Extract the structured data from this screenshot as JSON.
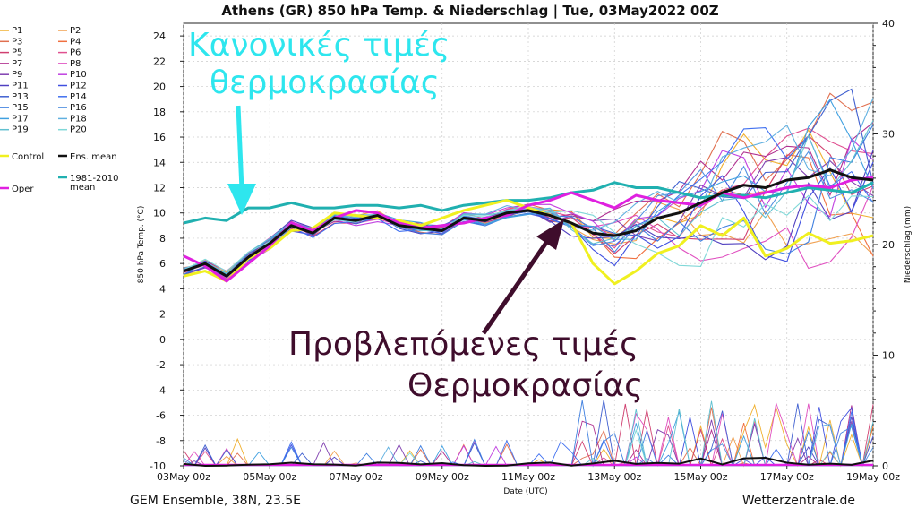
{
  "chart_data": {
    "type": "line",
    "title": "Athens  (GR)  850 hPa Temp. & Niederschlag | Tue, 03May2022 00Z",
    "xlabel": "Date (UTC)",
    "ylabel": "850 hPa Temp. (°C)",
    "y2label": "Niederschlag (mm)",
    "ylim": [
      -10,
      25
    ],
    "y2lim": [
      0,
      40
    ],
    "yticks": [
      -10,
      -8,
      -6,
      -4,
      -2,
      0,
      2,
      4,
      6,
      8,
      10,
      12,
      14,
      16,
      18,
      20,
      22,
      24
    ],
    "y2ticks": [
      0,
      10,
      20,
      30,
      40
    ],
    "xlim": [
      0,
      16
    ],
    "xticks": [
      {
        "x": 0,
        "label": "03May 00z"
      },
      {
        "x": 2,
        "label": "05May 00z"
      },
      {
        "x": 4,
        "label": "07May 00z"
      },
      {
        "x": 6,
        "label": "09May 00z"
      },
      {
        "x": 8,
        "label": "11May 00z"
      },
      {
        "x": 10,
        "label": "13May 00z"
      },
      {
        "x": 12,
        "label": "15May 00z"
      },
      {
        "x": 14,
        "label": "17May 00z"
      },
      {
        "x": 16,
        "label": "19May 00z"
      }
    ],
    "grid": true,
    "legend_position": "left",
    "members_count": 20,
    "member_colors": [
      "#f0b030",
      "#f0a050",
      "#e07050",
      "#f07040",
      "#d04070",
      "#e05090",
      "#b03090",
      "#e050c0",
      "#8040b0",
      "#c040e0",
      "#5040c0",
      "#4050e0",
      "#4060d0",
      "#4070f0",
      "#4080e0",
      "#5090e0",
      "#40a0e0",
      "#60b0e0",
      "#60c0d0",
      "#80d8d8"
    ],
    "legend": [
      {
        "label": "P1",
        "color": "#f0b030"
      },
      {
        "label": "P2",
        "color": "#f0a050"
      },
      {
        "label": "P3",
        "color": "#e07050"
      },
      {
        "label": "P4",
        "color": "#f07040"
      },
      {
        "label": "P5",
        "color": "#d04070"
      },
      {
        "label": "P6",
        "color": "#e05090"
      },
      {
        "label": "P7",
        "color": "#b03090"
      },
      {
        "label": "P8",
        "color": "#e050c0"
      },
      {
        "label": "P9",
        "color": "#8040b0"
      },
      {
        "label": "P10",
        "color": "#c040e0"
      },
      {
        "label": "P11",
        "color": "#5040c0"
      },
      {
        "label": "P12",
        "color": "#4050e0"
      },
      {
        "label": "P13",
        "color": "#4060d0"
      },
      {
        "label": "P14",
        "color": "#4070f0"
      },
      {
        "label": "P15",
        "color": "#4080e0"
      },
      {
        "label": "P16",
        "color": "#5090e0"
      },
      {
        "label": "P17",
        "color": "#40a0e0"
      },
      {
        "label": "P18",
        "color": "#60b0e0"
      },
      {
        "label": "P19",
        "color": "#60c0d0"
      },
      {
        "label": "P20",
        "color": "#80d8d8"
      },
      {
        "label": "Control",
        "color": "#f0f020"
      },
      {
        "label": "Ens. mean",
        "color": "#111111"
      },
      {
        "label": "1981-2010 mean",
        "color": "#20b0b0"
      },
      {
        "label": "Oper",
        "color": "#e020e0"
      }
    ],
    "series": [
      {
        "name": "Ens. mean",
        "color": "#111111",
        "width": 3,
        "values": [
          [
            0,
            5.4
          ],
          [
            0.5,
            6.0
          ],
          [
            1,
            5.0
          ],
          [
            1.5,
            6.5
          ],
          [
            2,
            7.6
          ],
          [
            2.5,
            9.0
          ],
          [
            3,
            8.4
          ],
          [
            3.5,
            9.6
          ],
          [
            4,
            9.4
          ],
          [
            4.5,
            9.8
          ],
          [
            5,
            9.0
          ],
          [
            5.5,
            8.8
          ],
          [
            6,
            8.6
          ],
          [
            6.5,
            9.6
          ],
          [
            7,
            9.4
          ],
          [
            7.5,
            10.0
          ],
          [
            8,
            10.2
          ],
          [
            8.5,
            9.8
          ],
          [
            9,
            9.2
          ],
          [
            9.5,
            8.4
          ],
          [
            10,
            8.2
          ],
          [
            10.5,
            8.6
          ],
          [
            11,
            9.6
          ],
          [
            11.5,
            10.0
          ],
          [
            12,
            10.8
          ],
          [
            12.5,
            11.6
          ],
          [
            13,
            12.2
          ],
          [
            13.5,
            12.0
          ],
          [
            14,
            12.6
          ],
          [
            14.5,
            12.8
          ],
          [
            15,
            13.4
          ],
          [
            15.5,
            12.8
          ],
          [
            16,
            12.6
          ]
        ]
      },
      {
        "name": "1981-2010 mean",
        "color": "#20b0b0",
        "width": 3,
        "values": [
          [
            0,
            9.2
          ],
          [
            0.5,
            9.6
          ],
          [
            1,
            9.4
          ],
          [
            1.5,
            10.4
          ],
          [
            2,
            10.4
          ],
          [
            2.5,
            10.8
          ],
          [
            3,
            10.4
          ],
          [
            3.5,
            10.4
          ],
          [
            4,
            10.6
          ],
          [
            4.5,
            10.6
          ],
          [
            5,
            10.4
          ],
          [
            5.5,
            10.6
          ],
          [
            6,
            10.2
          ],
          [
            6.5,
            10.6
          ],
          [
            7,
            10.8
          ],
          [
            7.5,
            11.0
          ],
          [
            8,
            11.0
          ],
          [
            8.5,
            11.2
          ],
          [
            9,
            11.6
          ],
          [
            9.5,
            11.8
          ],
          [
            10,
            12.4
          ],
          [
            10.5,
            12.0
          ],
          [
            11,
            12.0
          ],
          [
            11.5,
            11.6
          ],
          [
            12,
            11.2
          ],
          [
            12.5,
            11.4
          ],
          [
            13,
            11.4
          ],
          [
            13.5,
            11.2
          ],
          [
            14,
            11.6
          ],
          [
            14.5,
            12.0
          ],
          [
            15,
            11.8
          ],
          [
            15.5,
            11.6
          ],
          [
            16,
            12.4
          ]
        ]
      },
      {
        "name": "Control",
        "color": "#f0f020",
        "width": 3,
        "values": [
          [
            0,
            5.0
          ],
          [
            0.5,
            5.4
          ],
          [
            1,
            4.6
          ],
          [
            1.5,
            6.4
          ],
          [
            2,
            7.2
          ],
          [
            2.5,
            8.6
          ],
          [
            3,
            8.8
          ],
          [
            3.5,
            10.0
          ],
          [
            4,
            9.8
          ],
          [
            4.5,
            9.6
          ],
          [
            5,
            9.4
          ],
          [
            5.5,
            9.0
          ],
          [
            6,
            9.6
          ],
          [
            6.5,
            10.2
          ],
          [
            7,
            10.6
          ],
          [
            7.5,
            11.0
          ],
          [
            8,
            10.4
          ],
          [
            8.5,
            9.8
          ],
          [
            9,
            9.2
          ],
          [
            9.5,
            6.0
          ],
          [
            10,
            4.4
          ],
          [
            10.5,
            5.4
          ],
          [
            11,
            6.8
          ],
          [
            11.5,
            7.4
          ],
          [
            12,
            9.0
          ],
          [
            12.5,
            8.2
          ],
          [
            13,
            9.6
          ],
          [
            13.5,
            6.6
          ],
          [
            14,
            7.2
          ],
          [
            14.5,
            8.4
          ],
          [
            15,
            7.6
          ],
          [
            15.5,
            7.8
          ],
          [
            16,
            8.2
          ]
        ]
      },
      {
        "name": "Oper",
        "color": "#e020e0",
        "width": 3,
        "values": [
          [
            0,
            6.6
          ],
          [
            0.5,
            5.8
          ],
          [
            1,
            4.6
          ],
          [
            1.5,
            6.0
          ],
          [
            2,
            7.4
          ],
          [
            2.5,
            9.2
          ],
          [
            3,
            8.6
          ],
          [
            3.5,
            9.6
          ],
          [
            4,
            10.2
          ],
          [
            4.5,
            10.0
          ],
          [
            5,
            9.2
          ],
          [
            5.5,
            8.8
          ],
          [
            6,
            9.0
          ],
          [
            6.5,
            9.2
          ],
          [
            7,
            9.6
          ],
          [
            7.5,
            9.8
          ],
          [
            8,
            10.6
          ],
          [
            8.5,
            11.0
          ],
          [
            9,
            11.6
          ],
          [
            9.5,
            11.0
          ],
          [
            10,
            10.4
          ],
          [
            10.5,
            11.4
          ],
          [
            11,
            11.0
          ],
          [
            11.5,
            10.8
          ],
          [
            12,
            10.6
          ],
          [
            12.5,
            11.6
          ],
          [
            13,
            11.2
          ],
          [
            13.5,
            11.6
          ],
          [
            14,
            12.0
          ],
          [
            14.5,
            12.2
          ],
          [
            15,
            12.0
          ],
          [
            15.5,
            12.6
          ],
          [
            16,
            12.8
          ]
        ]
      }
    ]
  },
  "annotations": {
    "normal_temps_line1": "Κανονικές τιμές",
    "normal_temps_line2": "θερμοκρασίας",
    "forecast_line1": "Προβλεπόμενες τιμές",
    "forecast_line2": "Θερμοκρασίας"
  },
  "footer": {
    "left": "GEM Ensemble, 38N, 23.5E",
    "right": "Wetterzentrale.de"
  }
}
